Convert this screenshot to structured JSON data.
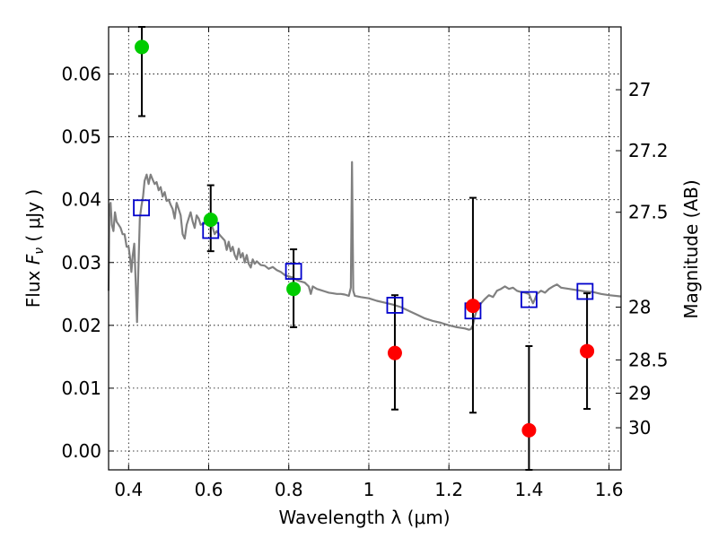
{
  "chart_data": {
    "type": "scatter",
    "xlabel": "Wavelength  λ (μm)",
    "ylabel": "Flux  Fν  ( μJy )",
    "y2label": "Magnitude (AB)",
    "xlim": [
      0.35,
      1.63
    ],
    "ylim": [
      -0.003,
      0.0675
    ],
    "grid": true,
    "x_ticks": [
      {
        "value": 0.4,
        "label": "0.4"
      },
      {
        "value": 0.6,
        "label": "0.6"
      },
      {
        "value": 0.8,
        "label": "0.8"
      },
      {
        "value": 1.0,
        "label": "1"
      },
      {
        "value": 1.2,
        "label": "1.2"
      },
      {
        "value": 1.4,
        "label": "1.4"
      },
      {
        "value": 1.6,
        "label": "1.6"
      }
    ],
    "y_ticks": [
      {
        "value": 0.0,
        "label": "0.00"
      },
      {
        "value": 0.01,
        "label": "0.01"
      },
      {
        "value": 0.02,
        "label": "0.02"
      },
      {
        "value": 0.03,
        "label": "0.03"
      },
      {
        "value": 0.04,
        "label": "0.04"
      },
      {
        "value": 0.05,
        "label": "0.05"
      },
      {
        "value": 0.06,
        "label": "0.06"
      }
    ],
    "y2_ticks": [
      {
        "flux": 0.0575,
        "label": "27"
      },
      {
        "flux": 0.0478,
        "label": "27.2"
      },
      {
        "flux": 0.038,
        "label": "27.5"
      },
      {
        "flux": 0.0229,
        "label": "28"
      },
      {
        "flux": 0.0145,
        "label": "28.5"
      },
      {
        "flux": 0.0092,
        "label": "29"
      },
      {
        "flux": 0.0037,
        "label": "30"
      }
    ],
    "model_spectrum": {
      "color": "#808080",
      "points": [
        [
          0.35,
          0.0255
        ],
        [
          0.352,
          0.039
        ],
        [
          0.355,
          0.0395
        ],
        [
          0.358,
          0.036
        ],
        [
          0.362,
          0.035
        ],
        [
          0.366,
          0.038
        ],
        [
          0.37,
          0.0365
        ],
        [
          0.375,
          0.036
        ],
        [
          0.38,
          0.0355
        ],
        [
          0.385,
          0.0345
        ],
        [
          0.39,
          0.0345
        ],
        [
          0.395,
          0.0325
        ],
        [
          0.4,
          0.0325
        ],
        [
          0.404,
          0.0305
        ],
        [
          0.407,
          0.0285
        ],
        [
          0.41,
          0.031
        ],
        [
          0.414,
          0.033
        ],
        [
          0.418,
          0.0265
        ],
        [
          0.421,
          0.0205
        ],
        [
          0.424,
          0.028
        ],
        [
          0.428,
          0.037
        ],
        [
          0.432,
          0.039
        ],
        [
          0.436,
          0.0405
        ],
        [
          0.44,
          0.043
        ],
        [
          0.445,
          0.044
        ],
        [
          0.45,
          0.0425
        ],
        [
          0.455,
          0.044
        ],
        [
          0.46,
          0.0432
        ],
        [
          0.465,
          0.0425
        ],
        [
          0.47,
          0.0428
        ],
        [
          0.475,
          0.0415
        ],
        [
          0.48,
          0.042
        ],
        [
          0.485,
          0.0405
        ],
        [
          0.49,
          0.0412
        ],
        [
          0.495,
          0.0398
        ],
        [
          0.5,
          0.04
        ],
        [
          0.505,
          0.0392
        ],
        [
          0.51,
          0.0385
        ],
        [
          0.515,
          0.037
        ],
        [
          0.52,
          0.0395
        ],
        [
          0.525,
          0.0385
        ],
        [
          0.53,
          0.0375
        ],
        [
          0.535,
          0.0345
        ],
        [
          0.54,
          0.0338
        ],
        [
          0.545,
          0.036
        ],
        [
          0.55,
          0.037
        ],
        [
          0.555,
          0.038
        ],
        [
          0.56,
          0.0365
        ],
        [
          0.565,
          0.0355
        ],
        [
          0.57,
          0.0375
        ],
        [
          0.575,
          0.037
        ],
        [
          0.58,
          0.036
        ],
        [
          0.59,
          0.0362
        ],
        [
          0.6,
          0.0365
        ],
        [
          0.61,
          0.0355
        ],
        [
          0.615,
          0.0345
        ],
        [
          0.62,
          0.035
        ],
        [
          0.63,
          0.0342
        ],
        [
          0.64,
          0.0335
        ],
        [
          0.645,
          0.032
        ],
        [
          0.65,
          0.0333
        ],
        [
          0.655,
          0.0318
        ],
        [
          0.66,
          0.0325
        ],
        [
          0.665,
          0.0312
        ],
        [
          0.67,
          0.0305
        ],
        [
          0.675,
          0.0322
        ],
        [
          0.68,
          0.0308
        ],
        [
          0.685,
          0.0315
        ],
        [
          0.69,
          0.03
        ],
        [
          0.695,
          0.0312
        ],
        [
          0.7,
          0.0298
        ],
        [
          0.705,
          0.0292
        ],
        [
          0.71,
          0.0305
        ],
        [
          0.715,
          0.0298
        ],
        [
          0.72,
          0.0302
        ],
        [
          0.73,
          0.0296
        ],
        [
          0.74,
          0.0295
        ],
        [
          0.75,
          0.029
        ],
        [
          0.76,
          0.0293
        ],
        [
          0.77,
          0.0288
        ],
        [
          0.78,
          0.0285
        ],
        [
          0.79,
          0.028
        ],
        [
          0.8,
          0.0278
        ],
        [
          0.81,
          0.0276
        ],
        [
          0.82,
          0.0272
        ],
        [
          0.83,
          0.027
        ],
        [
          0.84,
          0.0268
        ],
        [
          0.85,
          0.0262
        ],
        [
          0.855,
          0.025
        ],
        [
          0.86,
          0.0262
        ],
        [
          0.87,
          0.0258
        ],
        [
          0.88,
          0.0256
        ],
        [
          0.89,
          0.0254
        ],
        [
          0.9,
          0.0252
        ],
        [
          0.91,
          0.0251
        ],
        [
          0.92,
          0.025
        ],
        [
          0.93,
          0.025
        ],
        [
          0.94,
          0.0249
        ],
        [
          0.95,
          0.0247
        ],
        [
          0.955,
          0.026
        ],
        [
          0.958,
          0.046
        ],
        [
          0.961,
          0.0255
        ],
        [
          0.965,
          0.0247
        ],
        [
          0.98,
          0.0245
        ],
        [
          1.0,
          0.0243
        ],
        [
          1.02,
          0.0239
        ],
        [
          1.04,
          0.0236
        ],
        [
          1.06,
          0.0233
        ],
        [
          1.08,
          0.0229
        ],
        [
          1.1,
          0.0223
        ],
        [
          1.12,
          0.0217
        ],
        [
          1.14,
          0.0211
        ],
        [
          1.16,
          0.0207
        ],
        [
          1.18,
          0.0204
        ],
        [
          1.2,
          0.02
        ],
        [
          1.22,
          0.0197
        ],
        [
          1.24,
          0.0195
        ],
        [
          1.25,
          0.0193
        ],
        [
          1.255,
          0.0194
        ],
        [
          1.26,
          0.02
        ],
        [
          1.265,
          0.0215
        ],
        [
          1.27,
          0.0225
        ],
        [
          1.28,
          0.0235
        ],
        [
          1.29,
          0.0242
        ],
        [
          1.3,
          0.0248
        ],
        [
          1.31,
          0.0245
        ],
        [
          1.32,
          0.0255
        ],
        [
          1.33,
          0.0258
        ],
        [
          1.34,
          0.0262
        ],
        [
          1.35,
          0.0258
        ],
        [
          1.36,
          0.026
        ],
        [
          1.37,
          0.0255
        ],
        [
          1.38,
          0.0253
        ],
        [
          1.39,
          0.0252
        ],
        [
          1.4,
          0.025
        ],
        [
          1.405,
          0.0242
        ],
        [
          1.41,
          0.0235
        ],
        [
          1.415,
          0.0242
        ],
        [
          1.42,
          0.025
        ],
        [
          1.43,
          0.0255
        ],
        [
          1.44,
          0.0252
        ],
        [
          1.45,
          0.0258
        ],
        [
          1.46,
          0.0262
        ],
        [
          1.47,
          0.0265
        ],
        [
          1.48,
          0.026
        ],
        [
          1.5,
          0.0258
        ],
        [
          1.52,
          0.0256
        ],
        [
          1.54,
          0.0254
        ],
        [
          1.56,
          0.0253
        ],
        [
          1.58,
          0.025
        ],
        [
          1.6,
          0.0248
        ],
        [
          1.63,
          0.0246
        ]
      ]
    },
    "model_photometry": {
      "marker": "open-square",
      "color": "#0000cc",
      "points": [
        {
          "x": 0.432,
          "y": 0.0387
        },
        {
          "x": 0.605,
          "y": 0.0351
        },
        {
          "x": 0.812,
          "y": 0.0286
        },
        {
          "x": 1.065,
          "y": 0.0232
        },
        {
          "x": 1.26,
          "y": 0.0223
        },
        {
          "x": 1.4,
          "y": 0.0241
        },
        {
          "x": 1.54,
          "y": 0.0254
        }
      ]
    },
    "observed_detections": {
      "marker": "filled-circle",
      "color": "#00cc00",
      "points": [
        {
          "x": 0.433,
          "y": 0.0643,
          "yerr_low": 0.0533,
          "yerr_high": 0.0675
        },
        {
          "x": 0.605,
          "y": 0.0368,
          "yerr_low": 0.0318,
          "yerr_high": 0.0423
        },
        {
          "x": 0.812,
          "y": 0.0258,
          "yerr_low": 0.0197,
          "yerr_high": 0.0321
        }
      ]
    },
    "observed_upper_limits": {
      "marker": "filled-circle",
      "color": "#ff0000",
      "points": [
        {
          "x": 1.065,
          "y": 0.0156,
          "yerr_low": 0.0066,
          "yerr_high": 0.0248
        },
        {
          "x": 1.26,
          "y": 0.0231,
          "yerr_low": 0.0061,
          "yerr_high": 0.0403
        },
        {
          "x": 1.4,
          "y": 0.0033,
          "yerr_low": -0.003,
          "yerr_high": 0.0167
        },
        {
          "x": 1.545,
          "y": 0.0159,
          "yerr_low": 0.0067,
          "yerr_high": 0.0251
        }
      ]
    }
  }
}
